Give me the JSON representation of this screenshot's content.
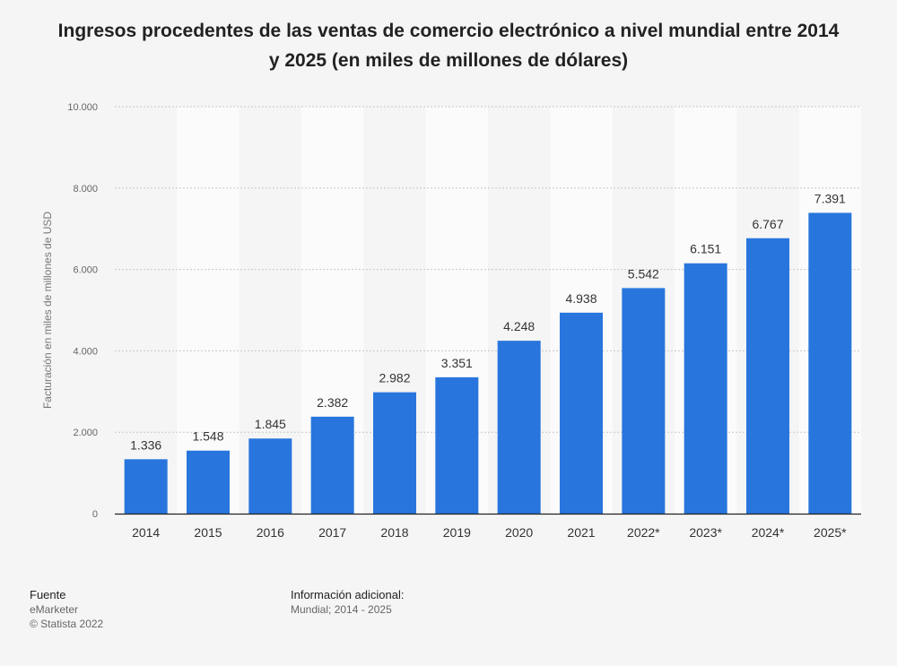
{
  "chart_data": {
    "type": "bar",
    "title": "Ingresos procedentes de las ventas de comercio electrónico a nivel mundial entre 2014 y 2025 (en miles de millones de dólares)",
    "ylabel": "Facturación en miles de millones de USD",
    "xlabel": "",
    "ylim": [
      0,
      10000
    ],
    "yticks": [
      {
        "value": 0,
        "label": "0"
      },
      {
        "value": 2000,
        "label": "2.000"
      },
      {
        "value": 4000,
        "label": "4.000"
      },
      {
        "value": 6000,
        "label": "6.000"
      },
      {
        "value": 8000,
        "label": "8.000"
      },
      {
        "value": 10000,
        "label": "10.000"
      }
    ],
    "categories": [
      "2014",
      "2015",
      "2016",
      "2017",
      "2018",
      "2019",
      "2020",
      "2021",
      "2022*",
      "2023*",
      "2024*",
      "2025*"
    ],
    "values": [
      1336,
      1548,
      1845,
      2382,
      2982,
      3351,
      4248,
      4938,
      5542,
      6151,
      6767,
      7391
    ],
    "value_labels": [
      "1.336",
      "1.548",
      "1.845",
      "2.382",
      "2.982",
      "3.351",
      "4.248",
      "4.938",
      "5.542",
      "6.151",
      "6.767",
      "7.391"
    ],
    "bar_color": "#2876dd",
    "grid": true
  },
  "footer": {
    "source_heading": "Fuente",
    "source_name": "eMarketer",
    "copyright": "© Statista 2022",
    "info_heading": "Información adicional:",
    "info_text": "Mundial; 2014 - 2025"
  }
}
